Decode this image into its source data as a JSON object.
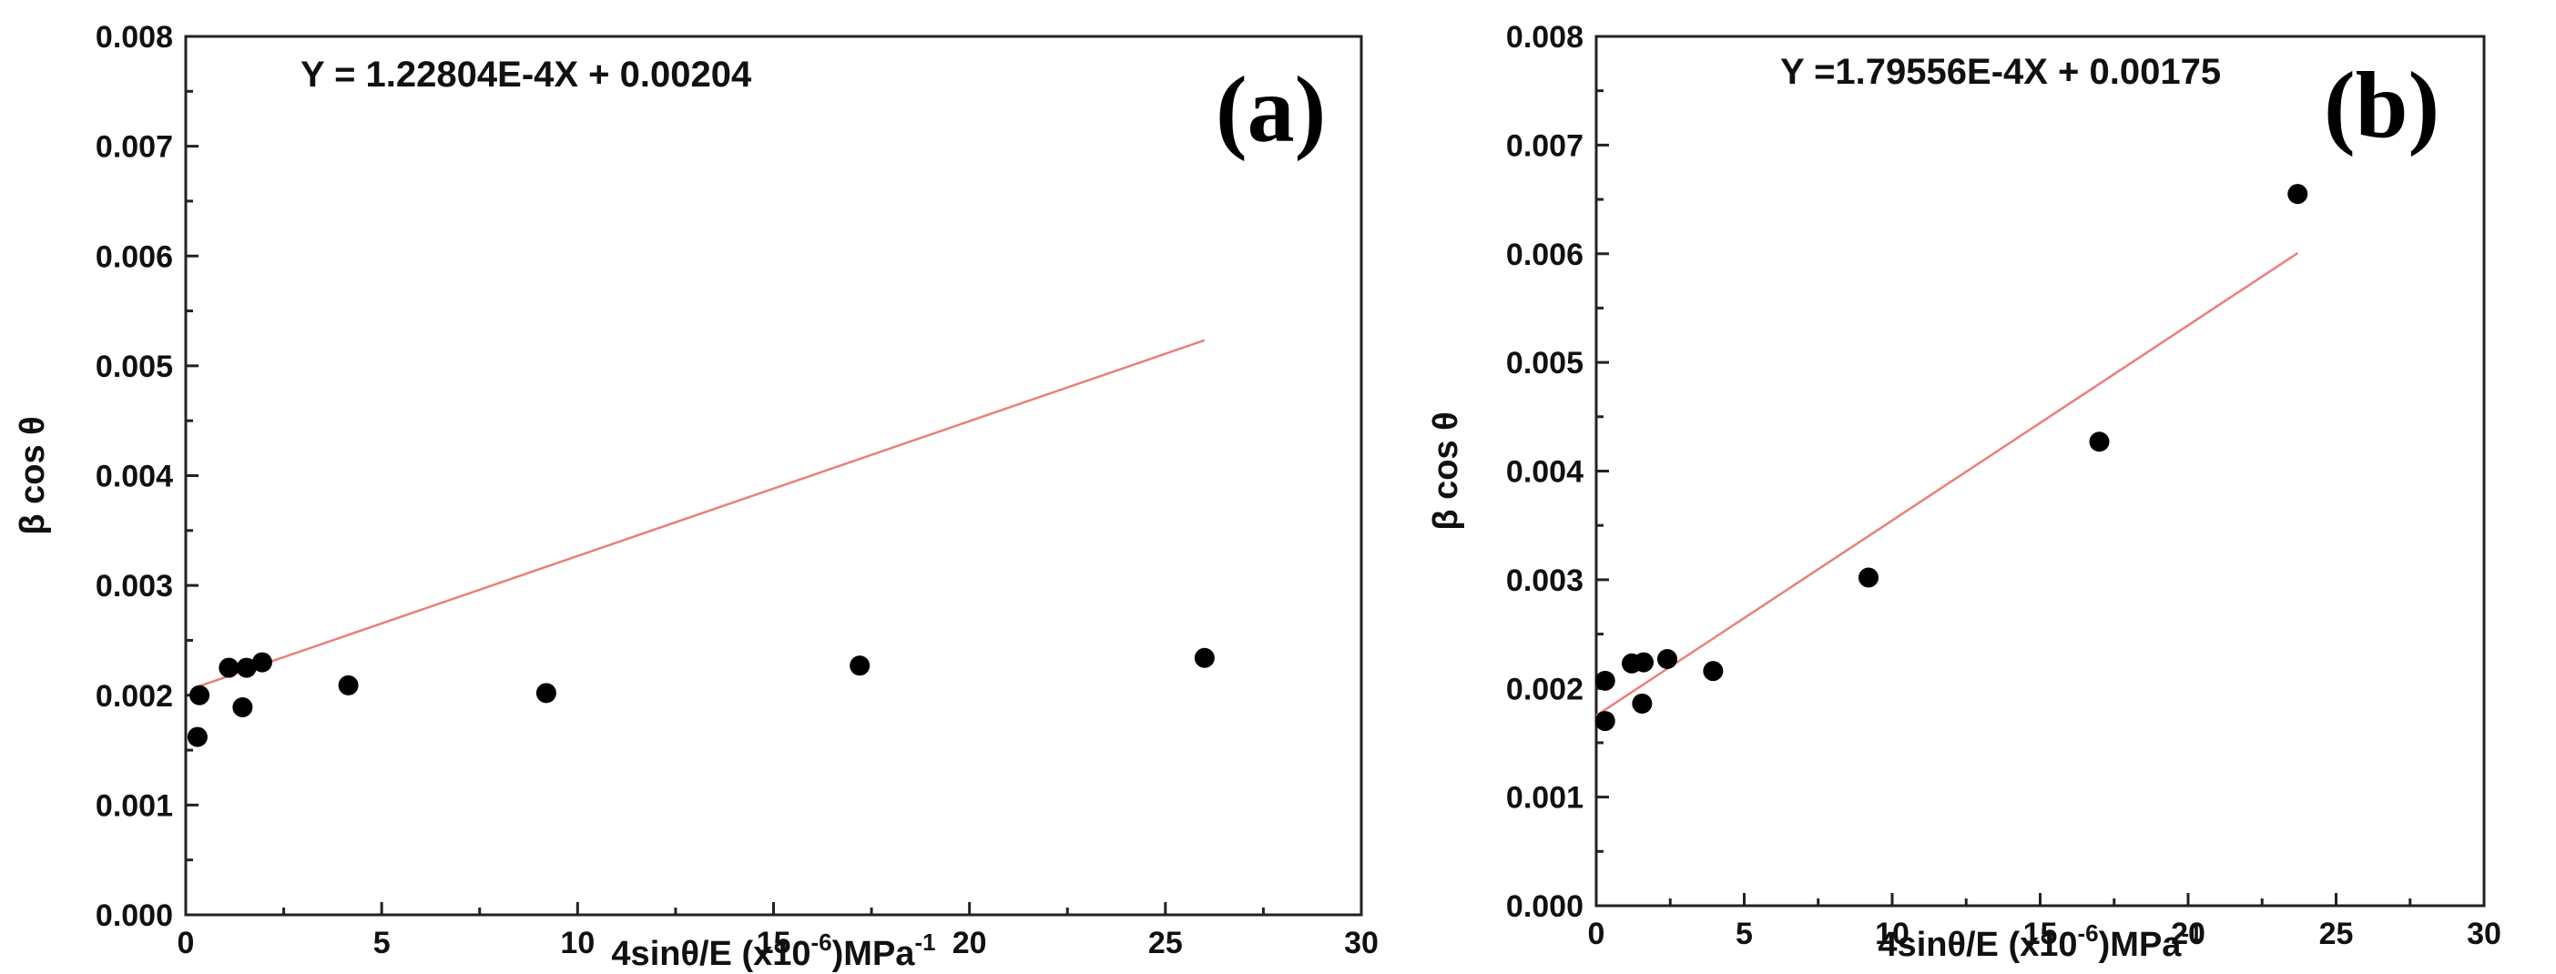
{
  "chart_data": [
    {
      "type": "scatter",
      "panel_label": "(a)",
      "equation": "Y = 1.22804E-4X + 0.00204",
      "xlabel": "4sinθ/E (x10",
      "xlabel_exp": "-6",
      "xlabel_tail": ")MPa",
      "xlabel_unit_exp": "-1",
      "ylabel": "β cos θ",
      "xlim": [
        0,
        30
      ],
      "ylim": [
        0,
        0.008
      ],
      "xticks": [
        0,
        5,
        10,
        15,
        20,
        25,
        30
      ],
      "xtick_labels": [
        "0",
        "5",
        "10",
        "15",
        "20",
        "25",
        "30"
      ],
      "yticks": [
        0,
        0.001,
        0.002,
        0.003,
        0.004,
        0.005,
        0.006,
        0.007,
        0.008
      ],
      "ytick_labels": [
        "0.000",
        "0.001",
        "0.002",
        "0.003",
        "0.004",
        "0.005",
        "0.006",
        "0.007",
        "0.008"
      ],
      "points": [
        {
          "x": 0.3,
          "y": 0.00162
        },
        {
          "x": 0.35,
          "y": 0.002
        },
        {
          "x": 1.1,
          "y": 0.00225
        },
        {
          "x": 1.45,
          "y": 0.00189
        },
        {
          "x": 1.55,
          "y": 0.00225
        },
        {
          "x": 1.95,
          "y": 0.0023
        },
        {
          "x": 4.15,
          "y": 0.00209
        },
        {
          "x": 9.2,
          "y": 0.00202
        },
        {
          "x": 17.2,
          "y": 0.00227
        },
        {
          "x": 26.0,
          "y": 0.00234
        }
      ],
      "fit": {
        "slope": 0.000122804,
        "intercept": 0.00204,
        "x_range": [
          0.3,
          26.0
        ]
      },
      "fit_color": "#e8807a"
    },
    {
      "type": "scatter",
      "panel_label": "(b)",
      "equation": "Y =1.79556E-4X + 0.00175",
      "xlabel": "4sinθ/E (x10",
      "xlabel_exp": "-6",
      "xlabel_tail": ")MPa",
      "xlabel_unit_exp": "-1",
      "ylabel": "β cos θ",
      "xlim": [
        0,
        30
      ],
      "ylim": [
        0,
        0.008
      ],
      "xticks": [
        0,
        5,
        10,
        15,
        20,
        25,
        30
      ],
      "xtick_labels": [
        "0",
        "5",
        "10",
        "15",
        "20",
        "25",
        "30"
      ],
      "yticks": [
        0,
        0.001,
        0.002,
        0.003,
        0.004,
        0.005,
        0.006,
        0.007,
        0.008
      ],
      "ytick_labels": [
        "0.000",
        "0.001",
        "0.002",
        "0.003",
        "0.004",
        "0.005",
        "0.006",
        "0.007",
        "0.008"
      ],
      "points": [
        {
          "x": 0.3,
          "y": 0.0017
        },
        {
          "x": 0.3,
          "y": 0.00207
        },
        {
          "x": 1.2,
          "y": 0.00223
        },
        {
          "x": 1.55,
          "y": 0.00186
        },
        {
          "x": 1.6,
          "y": 0.00224
        },
        {
          "x": 2.4,
          "y": 0.00227
        },
        {
          "x": 3.95,
          "y": 0.00216
        },
        {
          "x": 9.2,
          "y": 0.00302
        },
        {
          "x": 17.0,
          "y": 0.00427
        },
        {
          "x": 23.7,
          "y": 0.00655
        }
      ],
      "fit": {
        "slope": 0.000179556,
        "intercept": 0.00175,
        "x_range": [
          0.0,
          23.7
        ]
      },
      "fit_color": "#e8807a"
    }
  ]
}
